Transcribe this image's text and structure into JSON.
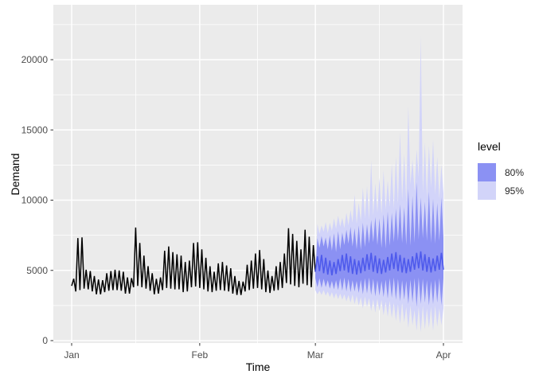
{
  "chart_data": {
    "type": "line",
    "title": "",
    "xlabel": "Time",
    "ylabel": "Demand",
    "description": "Historical daily electricity demand Jan-Mar (black line) with Mar-Apr forecast: mean line and 80%/95% prediction interval fans",
    "x_axis": {
      "ticks": [
        {
          "label": "Jan",
          "day": 0
        },
        {
          "label": "Feb",
          "day": 31
        },
        {
          "label": "Mar",
          "day": 59
        },
        {
          "label": "Apr",
          "day": 90
        }
      ],
      "minor_days": [
        15.5,
        45,
        74.5
      ],
      "range_days": [
        0,
        90
      ]
    },
    "y_axis": {
      "ticks": [
        {
          "label": "0",
          "value": 0
        },
        {
          "label": "5000",
          "value": 5000
        },
        {
          "label": "10000",
          "value": 10000
        },
        {
          "label": "15000",
          "value": 15000
        },
        {
          "label": "20000",
          "value": 20000
        }
      ],
      "minor_values": [
        2500,
        7500,
        12500,
        17500,
        22500
      ],
      "ylim": [
        0,
        22500
      ]
    },
    "legend": {
      "title": "level",
      "entries": [
        {
          "label": "80%",
          "color": "#8B91F3"
        },
        {
          "label": "95%",
          "color": "#D2D4F9"
        }
      ],
      "position": "right"
    },
    "colors": {
      "panel_background": "#EBEBEB",
      "gridline": "#FFFFFF",
      "history_line": "#000000",
      "mean_line": "#4E5AEC",
      "tick_text": "#4D4D4D",
      "tick_mark": "#333333"
    },
    "history": {
      "start_day": 0,
      "daily_peaks": [
        4400,
        7300,
        7350,
        5050,
        4950,
        4600,
        4350,
        4300,
        4800,
        4950,
        5050,
        5000,
        4900,
        4500,
        4450,
        8050,
        6950,
        6050,
        5300,
        4800,
        4400,
        4500,
        6400,
        6700,
        6300,
        6150,
        6050,
        5600,
        5700,
        6950,
        7000,
        6500,
        5900,
        5300,
        4900,
        5500,
        5600,
        5350,
        5150,
        4600,
        4250,
        4200,
        5400,
        5700,
        6200,
        6450,
        5800,
        5000,
        4600,
        5300,
        5600,
        6200,
        8000,
        7600,
        7100,
        6500,
        7900,
        7400,
        6800
      ],
      "daily_troughs": [
        3900,
        3500,
        3600,
        3700,
        3650,
        3500,
        3300,
        3300,
        3450,
        3550,
        3600,
        3600,
        3550,
        3350,
        3350,
        3800,
        3900,
        3800,
        3700,
        3550,
        3300,
        3350,
        3600,
        3750,
        3700,
        3650,
        3650,
        3450,
        3500,
        3800,
        3850,
        3750,
        3650,
        3500,
        3450,
        3550,
        3600,
        3550,
        3500,
        3350,
        3250,
        3250,
        3500,
        3600,
        3700,
        3750,
        3650,
        3450,
        3400,
        3550,
        3600,
        3750,
        4100,
        4000,
        3900,
        3800,
        4050,
        3950,
        3800
      ]
    },
    "forecast": {
      "start_day": 59,
      "n_days": 31,
      "mean_hi": [
        6000,
        6100,
        5900,
        5700,
        5600,
        5800,
        6100,
        6200,
        6000,
        5800,
        5700,
        5900,
        6150,
        6250,
        6050,
        5850,
        5750,
        5950,
        6200,
        6300,
        6100,
        5900,
        5800,
        6000,
        6250,
        6350,
        6150,
        5950,
        5850,
        6050,
        6250
      ],
      "mean_lo": [
        4900,
        4950,
        4800,
        4700,
        4650,
        4750,
        4950,
        5000,
        4850,
        4750,
        4700,
        4800,
        4950,
        5050,
        4900,
        4800,
        4750,
        4850,
        5000,
        5100,
        4950,
        4850,
        4800,
        4900,
        5050,
        5150,
        5000,
        4900,
        4850,
        4950,
        5050
      ],
      "hi80": [
        7300,
        7450,
        7350,
        7500,
        7650,
        7800,
        7700,
        7900,
        8100,
        8000,
        8200,
        8400,
        8300,
        8600,
        8800,
        8700,
        9000,
        9200,
        9100,
        9400,
        9700,
        9500,
        10800,
        10300,
        11300,
        10200,
        9900,
        10600,
        10100,
        9800,
        10200
      ],
      "hi80_base": [
        6600,
        6700,
        6500,
        6400,
        6300,
        6500,
        6800,
        6900,
        6700,
        6500,
        6450,
        6650,
        6900,
        7000,
        6800,
        6600,
        6550,
        6750,
        7000,
        7100,
        6950,
        6800,
        6750,
        6950,
        7200,
        7300,
        7100,
        6950,
        6900,
        7100,
        7300
      ],
      "lo80": [
        3800,
        3750,
        3800,
        3700,
        3650,
        3600,
        3550,
        3500,
        3450,
        3500,
        3400,
        3300,
        3350,
        3250,
        3150,
        3200,
        3100,
        3000,
        3050,
        2900,
        2800,
        2900,
        2600,
        2700,
        2400,
        2600,
        2700,
        2500,
        2600,
        2700,
        2500
      ],
      "lo80_base": [
        4450,
        4450,
        4400,
        4300,
        4250,
        4300,
        4450,
        4500,
        4400,
        4300,
        4250,
        4350,
        4450,
        4500,
        4400,
        4300,
        4250,
        4350,
        4450,
        4500,
        4400,
        4300,
        4250,
        4350,
        4450,
        4500,
        4400,
        4300,
        4250,
        4350,
        4450
      ],
      "hi95": [
        8300,
        8200,
        8450,
        8400,
        8700,
        8900,
        8750,
        9100,
        9300,
        10400,
        9800,
        10900,
        11000,
        12800,
        11200,
        11600,
        12100,
        11400,
        12600,
        13100,
        14800,
        13300,
        16700,
        12900,
        13600,
        21700,
        14100,
        13900,
        14300,
        13100,
        12500
      ],
      "hi95_base": [
        7600,
        7750,
        7650,
        7800,
        7950,
        8100,
        8000,
        8200,
        8400,
        8300,
        8500,
        8700,
        8600,
        8900,
        9100,
        9000,
        9300,
        9500,
        9400,
        9700,
        10000,
        9800,
        11100,
        10600,
        11600,
        10500,
        10200,
        10900,
        10400,
        10100,
        10500
      ],
      "lo95": [
        3300,
        3250,
        3200,
        3100,
        3000,
        2950,
        2900,
        2800,
        2700,
        2600,
        2500,
        2300,
        2400,
        2100,
        2000,
        2100,
        1800,
        1700,
        1600,
        1400,
        1200,
        1300,
        900,
        1100,
        700,
        600,
        800,
        900,
        700,
        1000,
        1100
      ],
      "lo95_base": [
        3600,
        3550,
        3600,
        3500,
        3450,
        3400,
        3350,
        3300,
        3250,
        3300,
        3200,
        3100,
        3150,
        3050,
        2950,
        3000,
        2900,
        2800,
        2850,
        2700,
        2600,
        2700,
        2400,
        2500,
        2200,
        2400,
        2500,
        2300,
        2400,
        2500,
        2300
      ]
    }
  }
}
